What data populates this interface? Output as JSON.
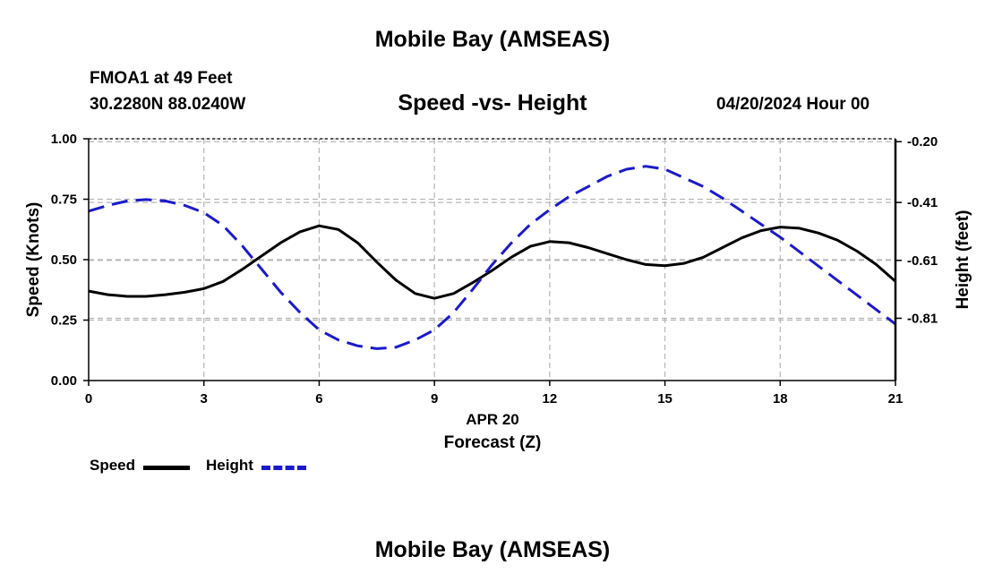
{
  "header": {
    "title": "Mobile Bay (AMSEAS)",
    "station": "FMOA1 at 49 Feet",
    "coords": "30.2280N  88.0240W",
    "subtitle": "Speed -vs- Height",
    "datetime": "04/20/2024 Hour 00"
  },
  "footer": {
    "title": "Mobile Bay (AMSEAS)"
  },
  "colors": {
    "speed": "#000000",
    "height": "#1a1acc",
    "grid": "#b5b5b5"
  },
  "chart_data": {
    "type": "line",
    "title": "Speed -vs- Height",
    "xlabel": "Forecast (Z)",
    "xlabel_date": "APR 20",
    "ylabel": "Speed (Knots)",
    "y2label": "Height (feet)",
    "xlim": [
      0,
      21
    ],
    "ylim": [
      0,
      1
    ],
    "y2lim": [
      -1.025,
      -0.19
    ],
    "x_ticks": [
      0,
      3,
      6,
      9,
      12,
      15,
      18,
      21
    ],
    "x_tick_labels": [
      "0",
      "3",
      "6",
      "9",
      "12",
      "15",
      "18",
      "21"
    ],
    "y_ticks": [
      0,
      0.25,
      0.5,
      0.75,
      1.0
    ],
    "y_tick_labels": [
      "0.00",
      "0.25",
      "0.50",
      "0.75",
      "1.00"
    ],
    "y2_ticks": [
      -0.2,
      -0.41,
      -0.61,
      -0.81
    ],
    "y2_tick_labels": [
      "-0.20",
      "-0.41",
      "-0.61",
      "-0.81"
    ],
    "grid": true,
    "legend": {
      "position": "bottom-left",
      "entries": [
        "Speed",
        "Height"
      ]
    },
    "series": [
      {
        "name": "Speed",
        "axis": "left",
        "style": "solid",
        "x": [
          0,
          0.5,
          1,
          1.5,
          2,
          2.5,
          3,
          3.5,
          4,
          4.5,
          5,
          5.5,
          6,
          6.5,
          7,
          7.5,
          8,
          8.5,
          9,
          9.5,
          10,
          10.5,
          11,
          11.5,
          12,
          12.5,
          13,
          13.5,
          14,
          14.5,
          15,
          15.5,
          16,
          16.5,
          17,
          17.5,
          18,
          18.5,
          19,
          19.5,
          20,
          20.5,
          21
        ],
        "values": [
          0.37,
          0.355,
          0.348,
          0.348,
          0.355,
          0.365,
          0.38,
          0.41,
          0.46,
          0.515,
          0.57,
          0.615,
          0.64,
          0.625,
          0.57,
          0.49,
          0.415,
          0.36,
          0.34,
          0.36,
          0.405,
          0.455,
          0.51,
          0.555,
          0.575,
          0.57,
          0.55,
          0.525,
          0.5,
          0.48,
          0.475,
          0.485,
          0.51,
          0.55,
          0.59,
          0.62,
          0.635,
          0.63,
          0.61,
          0.58,
          0.535,
          0.48,
          0.41
        ]
      },
      {
        "name": "Height",
        "axis": "right",
        "style": "dashed",
        "x": [
          0,
          0.5,
          1,
          1.5,
          2,
          2.5,
          3,
          3.5,
          4,
          4.5,
          5,
          5.5,
          6,
          6.5,
          7,
          7.5,
          8,
          8.5,
          9,
          9.5,
          10,
          10.5,
          11,
          11.5,
          12,
          12.5,
          13,
          13.5,
          14,
          14.5,
          15,
          15.5,
          16,
          16.5,
          17,
          17.5,
          18,
          18.5,
          19,
          19.5,
          20,
          20.5,
          21
        ],
        "values": [
          -0.44,
          -0.42,
          -0.405,
          -0.4,
          -0.405,
          -0.42,
          -0.445,
          -0.49,
          -0.56,
          -0.64,
          -0.72,
          -0.79,
          -0.85,
          -0.885,
          -0.905,
          -0.915,
          -0.91,
          -0.885,
          -0.85,
          -0.79,
          -0.71,
          -0.625,
          -0.55,
          -0.485,
          -0.435,
          -0.39,
          -0.355,
          -0.32,
          -0.295,
          -0.285,
          -0.295,
          -0.325,
          -0.355,
          -0.395,
          -0.44,
          -0.485,
          -0.53,
          -0.58,
          -0.63,
          -0.68,
          -0.73,
          -0.78,
          -0.83
        ]
      }
    ]
  }
}
